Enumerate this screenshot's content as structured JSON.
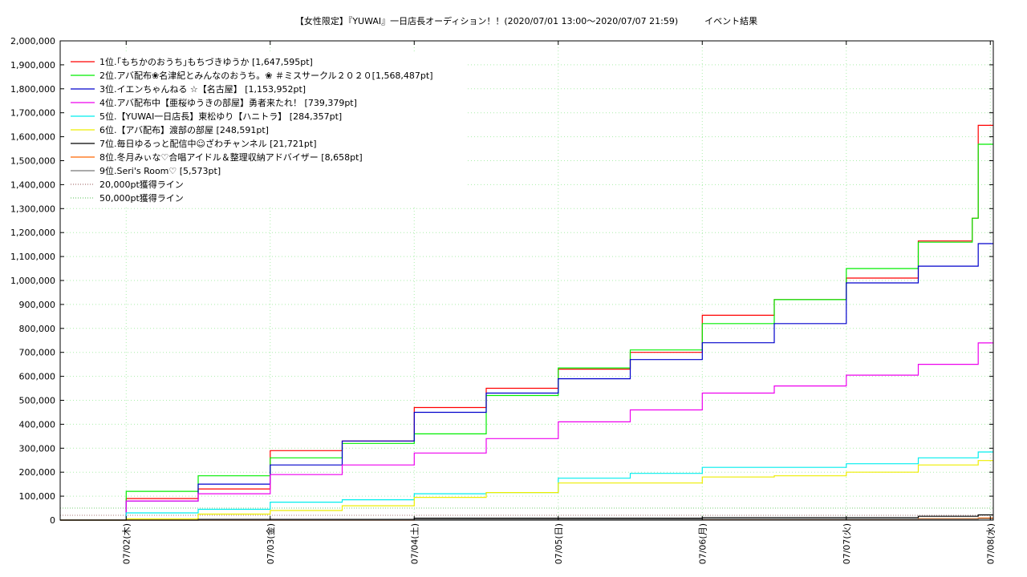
{
  "chart_data": {
    "type": "line",
    "title": "【女性限定】『YUWAI』一日店長オーディション！！(2020/07/01 13:00〜2020/07/07 21:59)　　　イベント結果",
    "xlabel": "",
    "ylabel": "",
    "x_range": [
      "2020-07-01 13:00",
      "2020-07-08 00:30"
    ],
    "ylim": [
      0,
      2000000
    ],
    "yticks": [
      "0",
      "100,000",
      "200,000",
      "300,000",
      "400,000",
      "500,000",
      "600,000",
      "700,000",
      "800,000",
      "900,000",
      "1,000,000",
      "1,100,000",
      "1,200,000",
      "1,300,000",
      "1,400,000",
      "1,500,000",
      "1,600,000",
      "1,700,000",
      "1,800,000",
      "1,900,000",
      "2,000,000"
    ],
    "xticks": [
      "07/02(木)",
      "07/03(金)",
      "07/04(土)",
      "07/05(日)",
      "07/06(月)",
      "07/07(火)",
      "07/08(水)"
    ],
    "xtick_dates": [
      "2020-07-02 00:00",
      "2020-07-03 00:00",
      "2020-07-04 00:00",
      "2020-07-05 00:00",
      "2020-07-06 00:00",
      "2020-07-07 00:00",
      "2020-07-08 00:00"
    ],
    "grid": true,
    "legend_position": "top-left",
    "series": [
      {
        "name": "1位.｢もちかのおうち｣もちづきゆうか [1,647,595pt]",
        "color": "#ff0000",
        "x": [
          "2020-07-01 13:00",
          "2020-07-02 00:00",
          "2020-07-02 12:00",
          "2020-07-03 00:00",
          "2020-07-03 12:00",
          "2020-07-04 00:00",
          "2020-07-04 12:00",
          "2020-07-05 00:00",
          "2020-07-05 12:00",
          "2020-07-06 00:00",
          "2020-07-06 12:00",
          "2020-07-07 00:00",
          "2020-07-07 12:00",
          "2020-07-07 21:00",
          "2020-07-07 21:59",
          "2020-07-08 00:30"
        ],
        "y": [
          0,
          90000,
          130000,
          290000,
          330000,
          470000,
          550000,
          630000,
          700000,
          855000,
          920000,
          1010000,
          1165000,
          1260000,
          1647595,
          1647595
        ]
      },
      {
        "name": "2位.アバ配布❀名津紀とみんなのおうち。❀ ＃ミスサークル２０２０[1,568,487pt]",
        "color": "#00ee00",
        "x": [
          "2020-07-01 13:00",
          "2020-07-02 00:00",
          "2020-07-02 12:00",
          "2020-07-03 00:00",
          "2020-07-03 12:00",
          "2020-07-04 00:00",
          "2020-07-04 12:00",
          "2020-07-05 00:00",
          "2020-07-05 12:00",
          "2020-07-06 00:00",
          "2020-07-06 12:00",
          "2020-07-07 00:00",
          "2020-07-07 12:00",
          "2020-07-07 21:00",
          "2020-07-07 21:59",
          "2020-07-08 00:30"
        ],
        "y": [
          0,
          120000,
          185000,
          260000,
          320000,
          360000,
          520000,
          635000,
          710000,
          820000,
          920000,
          1050000,
          1160000,
          1260000,
          1568487,
          1568487
        ]
      },
      {
        "name": "3位.イエンちゃんねる ☆【名古屋】 [1,153,952pt]",
        "color": "#0000cc",
        "x": [
          "2020-07-01 13:00",
          "2020-07-02 00:00",
          "2020-07-02 12:00",
          "2020-07-03 00:00",
          "2020-07-03 12:00",
          "2020-07-04 00:00",
          "2020-07-04 12:00",
          "2020-07-05 00:00",
          "2020-07-05 12:00",
          "2020-07-06 00:00",
          "2020-07-06 12:00",
          "2020-07-07 00:00",
          "2020-07-07 12:00",
          "2020-07-07 21:59",
          "2020-07-08 00:30"
        ],
        "y": [
          0,
          80000,
          150000,
          230000,
          330000,
          450000,
          530000,
          590000,
          670000,
          740000,
          820000,
          990000,
          1060000,
          1153952,
          1153952
        ]
      },
      {
        "name": "4位.アバ配布中【亜桜ゆうきの部屋】勇者来たれ！ [739,379pt]",
        "color": "#ee00ee",
        "x": [
          "2020-07-01 13:00",
          "2020-07-02 00:00",
          "2020-07-02 12:00",
          "2020-07-03 00:00",
          "2020-07-03 12:00",
          "2020-07-04 00:00",
          "2020-07-04 12:00",
          "2020-07-05 00:00",
          "2020-07-05 12:00",
          "2020-07-06 00:00",
          "2020-07-06 12:00",
          "2020-07-07 00:00",
          "2020-07-07 12:00",
          "2020-07-07 21:59",
          "2020-07-08 00:30"
        ],
        "y": [
          0,
          80000,
          110000,
          190000,
          230000,
          280000,
          340000,
          410000,
          460000,
          530000,
          560000,
          605000,
          650000,
          739379,
          739379
        ]
      },
      {
        "name": "5位.【YUWAI一日店長】東松ゆり【ハニトラ】 [284,357pt]",
        "color": "#00eeee",
        "x": [
          "2020-07-01 13:00",
          "2020-07-02 00:00",
          "2020-07-02 12:00",
          "2020-07-03 00:00",
          "2020-07-03 12:00",
          "2020-07-04 00:00",
          "2020-07-04 12:00",
          "2020-07-05 00:00",
          "2020-07-05 12:00",
          "2020-07-06 00:00",
          "2020-07-06 12:00",
          "2020-07-07 00:00",
          "2020-07-07 12:00",
          "2020-07-07 21:59",
          "2020-07-08 00:30"
        ],
        "y": [
          0,
          30000,
          45000,
          75000,
          85000,
          110000,
          115000,
          175000,
          195000,
          220000,
          220000,
          235000,
          260000,
          284357,
          284357
        ]
      },
      {
        "name": "6位.【アバ配布】渡部の部屋 [248,591pt]",
        "color": "#eeee00",
        "x": [
          "2020-07-01 13:00",
          "2020-07-02 00:00",
          "2020-07-02 12:00",
          "2020-07-03 00:00",
          "2020-07-03 12:00",
          "2020-07-04 00:00",
          "2020-07-04 12:00",
          "2020-07-05 00:00",
          "2020-07-05 12:00",
          "2020-07-06 00:00",
          "2020-07-06 12:00",
          "2020-07-07 00:00",
          "2020-07-07 12:00",
          "2020-07-07 21:59",
          "2020-07-08 00:30"
        ],
        "y": [
          0,
          5000,
          25000,
          40000,
          60000,
          95000,
          115000,
          155000,
          155000,
          180000,
          185000,
          200000,
          230000,
          248591,
          248591
        ]
      },
      {
        "name": "7位.毎日ゆるっと配信中☺ざわチャンネル [21,721pt]",
        "color": "#000000",
        "x": [
          "2020-07-01 13:00",
          "2020-07-02 12:00",
          "2020-07-04 00:00",
          "2020-07-06 00:00",
          "2020-07-07 12:00",
          "2020-07-07 21:59",
          "2020-07-08 00:30"
        ],
        "y": [
          0,
          3000,
          8000,
          10000,
          16000,
          21721,
          21721
        ]
      },
      {
        "name": "8位.冬月みぃな♡合唱アイドル＆整理収納アドバイザー [8,658pt]",
        "color": "#ff6600",
        "x": [
          "2020-07-01 13:00",
          "2020-07-04 00:00",
          "2020-07-06 00:00",
          "2020-07-07 12:00",
          "2020-07-07 21:59",
          "2020-07-08 00:30"
        ],
        "y": [
          0,
          1000,
          3000,
          6000,
          8658,
          8658
        ]
      },
      {
        "name": "9位.Seri's Room♡ [5,573pt]",
        "color": "#777777",
        "x": [
          "2020-07-01 13:00",
          "2020-07-02 12:00",
          "2020-07-04 00:00",
          "2020-07-06 00:00",
          "2020-07-07 21:59",
          "2020-07-08 00:30"
        ],
        "y": [
          0,
          1000,
          3000,
          4000,
          5573,
          5573
        ]
      }
    ],
    "reference_lines": [
      {
        "name": "20,000pt獲得ライン",
        "value": 20000,
        "color": "#aa7777"
      },
      {
        "name": "50,000pt獲得ライン",
        "value": 50000,
        "color": "#77cc77"
      }
    ]
  }
}
